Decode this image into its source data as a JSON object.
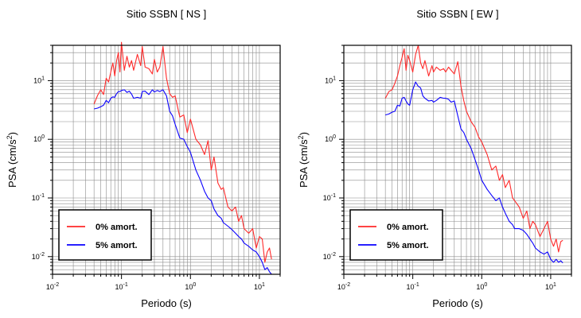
{
  "chart_data": [
    {
      "type": "line",
      "title": "Sitio SSBN [ NS ]",
      "xlabel": "Periodo (s)",
      "ylabel_main": "PSA (cm/s",
      "ylabel_sup": "2",
      "ylabel_tail": ")",
      "x_scale": "log",
      "y_scale": "log",
      "xlim": [
        0.01,
        20
      ],
      "ylim": [
        0.005,
        40
      ],
      "grid": true,
      "legend_placement": "bottom-left",
      "x_ticks": [
        {
          "base": "10",
          "exp": "-2",
          "value": 0.01
        },
        {
          "base": "10",
          "exp": "-1",
          "value": 0.1
        },
        {
          "base": "10",
          "exp": "0",
          "value": 1
        },
        {
          "base": "10",
          "exp": "1",
          "value": 10
        }
      ],
      "y_ticks": [
        {
          "base": "10",
          "exp": "-2",
          "value": 0.01
        },
        {
          "base": "10",
          "exp": "-1",
          "value": 0.1
        },
        {
          "base": "10",
          "exp": "0",
          "value": 1
        },
        {
          "base": "10",
          "exp": "1",
          "value": 10
        }
      ],
      "series": [
        {
          "name": "0% amort.",
          "color": "#ff2a2a",
          "x": [
            0.04,
            0.045,
            0.05,
            0.055,
            0.06,
            0.065,
            0.07,
            0.075,
            0.08,
            0.085,
            0.09,
            0.095,
            0.1,
            0.11,
            0.12,
            0.13,
            0.14,
            0.15,
            0.17,
            0.19,
            0.2,
            0.22,
            0.25,
            0.28,
            0.3,
            0.33,
            0.36,
            0.4,
            0.45,
            0.5,
            0.55,
            0.6,
            0.7,
            0.8,
            0.9,
            1.0,
            1.2,
            1.4,
            1.6,
            1.8,
            2.0,
            2.2,
            2.5,
            2.8,
            3.0,
            3.5,
            4.0,
            4.5,
            5.0,
            5.5,
            6.0,
            7.0,
            8.0,
            9.0,
            10.0,
            11.0,
            12.0,
            13.0,
            14.0,
            15.0
          ],
          "values": [
            4.0,
            5.6,
            7.0,
            5.8,
            11.0,
            9.5,
            14.0,
            20.0,
            12.0,
            22.0,
            30.0,
            14.0,
            45.0,
            15.0,
            26.0,
            17.0,
            22.0,
            15.0,
            28.0,
            18.0,
            38.0,
            17.0,
            16.0,
            13.0,
            23.0,
            14.0,
            17.0,
            38.0,
            11.0,
            6.0,
            5.2,
            5.5,
            2.4,
            2.6,
            1.3,
            2.2,
            1.0,
            0.8,
            0.55,
            0.95,
            0.3,
            0.5,
            0.18,
            0.14,
            0.15,
            0.07,
            0.06,
            0.07,
            0.04,
            0.05,
            0.03,
            0.025,
            0.03,
            0.014,
            0.022,
            0.02,
            0.008,
            0.012,
            0.014,
            0.009
          ]
        },
        {
          "name": "5% amort.",
          "color": "#0a00ff",
          "x": [
            0.04,
            0.045,
            0.05,
            0.055,
            0.06,
            0.065,
            0.07,
            0.075,
            0.08,
            0.085,
            0.09,
            0.095,
            0.1,
            0.11,
            0.12,
            0.13,
            0.14,
            0.15,
            0.17,
            0.19,
            0.2,
            0.22,
            0.25,
            0.28,
            0.3,
            0.33,
            0.36,
            0.4,
            0.45,
            0.5,
            0.55,
            0.6,
            0.7,
            0.8,
            0.9,
            1.0,
            1.2,
            1.4,
            1.6,
            1.8,
            2.0,
            2.2,
            2.5,
            2.8,
            3.0,
            3.5,
            4.0,
            4.5,
            5.0,
            5.5,
            6.0,
            7.0,
            8.0,
            9.0,
            10.0,
            11.0,
            12.0,
            13.0,
            14.0,
            15.0
          ],
          "values": [
            3.3,
            3.4,
            3.6,
            3.8,
            4.6,
            4.2,
            5.0,
            5.3,
            5.2,
            6.0,
            6.5,
            6.5,
            6.8,
            7.0,
            6.3,
            6.6,
            5.9,
            5.0,
            5.2,
            5.0,
            6.5,
            6.6,
            5.8,
            7.0,
            6.4,
            6.8,
            6.5,
            7.0,
            5.5,
            3.0,
            2.5,
            1.8,
            1.05,
            1.0,
            0.75,
            0.6,
            0.3,
            0.2,
            0.13,
            0.1,
            0.09,
            0.065,
            0.05,
            0.045,
            0.038,
            0.033,
            0.029,
            0.025,
            0.022,
            0.02,
            0.017,
            0.015,
            0.013,
            0.012,
            0.01,
            0.008,
            0.006,
            0.0065,
            0.0055,
            0.005
          ]
        }
      ]
    },
    {
      "type": "line",
      "title": "Sitio SSBN [ EW ]",
      "xlabel": "Periodo (s)",
      "ylabel_main": "PSA (cm/s",
      "ylabel_sup": "2",
      "ylabel_tail": ")",
      "x_scale": "log",
      "y_scale": "log",
      "xlim": [
        0.01,
        20
      ],
      "ylim": [
        0.005,
        40
      ],
      "grid": true,
      "legend_placement": "bottom-left",
      "x_ticks": [
        {
          "base": "10",
          "exp": "-2",
          "value": 0.01
        },
        {
          "base": "10",
          "exp": "-1",
          "value": 0.1
        },
        {
          "base": "10",
          "exp": "0",
          "value": 1
        },
        {
          "base": "10",
          "exp": "1",
          "value": 10
        }
      ],
      "y_ticks": [
        {
          "base": "10",
          "exp": "-2",
          "value": 0.01
        },
        {
          "base": "10",
          "exp": "-1",
          "value": 0.1
        },
        {
          "base": "10",
          "exp": "0",
          "value": 1
        },
        {
          "base": "10",
          "exp": "1",
          "value": 10
        }
      ],
      "series": [
        {
          "name": "0% amort.",
          "color": "#ff2a2a",
          "x": [
            0.04,
            0.045,
            0.05,
            0.055,
            0.06,
            0.065,
            0.07,
            0.075,
            0.08,
            0.085,
            0.09,
            0.1,
            0.11,
            0.12,
            0.13,
            0.14,
            0.15,
            0.17,
            0.19,
            0.2,
            0.22,
            0.25,
            0.28,
            0.3,
            0.33,
            0.36,
            0.4,
            0.45,
            0.5,
            0.55,
            0.6,
            0.7,
            0.8,
            0.9,
            1.0,
            1.2,
            1.4,
            1.6,
            1.8,
            2.0,
            2.2,
            2.5,
            2.8,
            3.0,
            3.5,
            4.0,
            4.5,
            5.0,
            5.5,
            6.0,
            7.0,
            8.0,
            9.0,
            10.0,
            11.0,
            12.0,
            13.0,
            14.0,
            15.0
          ],
          "values": [
            5.0,
            6.5,
            7.0,
            9.0,
            12.0,
            18.0,
            25.0,
            35.0,
            15.0,
            27.0,
            22.0,
            14.0,
            28.0,
            40.0,
            20.0,
            16.0,
            22.0,
            12.0,
            18.0,
            14.0,
            17.0,
            15.0,
            16.0,
            14.0,
            17.0,
            15.0,
            13.0,
            21.0,
            8.0,
            4.5,
            3.0,
            2.0,
            1.6,
            1.1,
            0.9,
            0.55,
            0.3,
            0.35,
            0.2,
            0.25,
            0.15,
            0.2,
            0.1,
            0.09,
            0.07,
            0.045,
            0.06,
            0.03,
            0.04,
            0.035,
            0.022,
            0.03,
            0.04,
            0.02,
            0.015,
            0.02,
            0.012,
            0.018,
            0.019
          ]
        },
        {
          "name": "5% amort.",
          "color": "#0a00ff",
          "x": [
            0.04,
            0.045,
            0.05,
            0.055,
            0.06,
            0.065,
            0.07,
            0.075,
            0.08,
            0.085,
            0.09,
            0.1,
            0.11,
            0.12,
            0.13,
            0.14,
            0.15,
            0.17,
            0.19,
            0.2,
            0.22,
            0.25,
            0.28,
            0.3,
            0.33,
            0.36,
            0.4,
            0.45,
            0.5,
            0.55,
            0.6,
            0.7,
            0.8,
            0.9,
            1.0,
            1.2,
            1.4,
            1.6,
            1.8,
            2.0,
            2.2,
            2.5,
            2.8,
            3.0,
            3.5,
            4.0,
            4.5,
            5.0,
            5.5,
            6.0,
            7.0,
            8.0,
            9.0,
            10.0,
            11.0,
            12.0,
            13.0,
            14.0,
            15.0
          ],
          "values": [
            2.6,
            2.7,
            2.9,
            3.0,
            3.8,
            3.7,
            5.0,
            5.2,
            4.5,
            4.0,
            3.8,
            7.0,
            9.5,
            8.0,
            7.5,
            5.5,
            5.0,
            4.5,
            4.6,
            4.3,
            4.6,
            5.2,
            5.0,
            5.0,
            4.8,
            4.3,
            4.5,
            2.5,
            1.5,
            1.3,
            1.0,
            0.7,
            0.45,
            0.3,
            0.2,
            0.14,
            0.11,
            0.09,
            0.1,
            0.07,
            0.055,
            0.04,
            0.035,
            0.03,
            0.03,
            0.028,
            0.024,
            0.02,
            0.017,
            0.014,
            0.012,
            0.011,
            0.012,
            0.009,
            0.008,
            0.009,
            0.008,
            0.0085,
            0.0078
          ]
        }
      ]
    }
  ]
}
